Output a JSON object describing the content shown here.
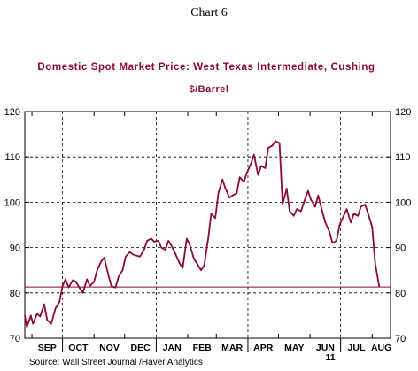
{
  "caption": "Chart 6",
  "source": "Source:  Wall Street Journal /Haver Analytics",
  "colors": {
    "series": "#8B0A2F",
    "title": "#8B0A2F",
    "grid": "#000000",
    "reference_line": "#8B0A2F"
  },
  "chart_data": {
    "type": "line",
    "title": "Domestic Spot Market Price: West Texas Intermediate, Cushing",
    "ylabel": "$/Barrel",
    "xlabel": "",
    "ylim": [
      70,
      120
    ],
    "yticks": [
      70,
      80,
      90,
      100,
      110,
      120
    ],
    "xlim": [
      "2010-08-25",
      "2011-08-19"
    ],
    "x_tick_labels": [
      "SEP",
      "OCT",
      "NOV",
      "DEC",
      "JAN",
      "FEB",
      "MAR",
      "APR",
      "MAY",
      "JUN",
      "JUL",
      "AUG"
    ],
    "year_label": "11",
    "grid": "dashed, both axes",
    "reference_line": 81.3,
    "series": [
      {
        "points": [
          [
            "2010-08-25",
            75.0
          ],
          [
            "2010-08-27",
            72.5
          ],
          [
            "2010-08-31",
            75.0
          ],
          [
            "2010-09-02",
            73.2
          ],
          [
            "2010-09-06",
            75.4
          ],
          [
            "2010-09-09",
            74.8
          ],
          [
            "2010-09-13",
            77.5
          ],
          [
            "2010-09-16",
            74.0
          ],
          [
            "2010-09-20",
            73.2
          ],
          [
            "2010-09-24",
            76.5
          ],
          [
            "2010-09-28",
            78.0
          ],
          [
            "2010-10-01",
            81.5
          ],
          [
            "2010-10-04",
            83.0
          ],
          [
            "2010-10-07",
            81.2
          ],
          [
            "2010-10-11",
            82.8
          ],
          [
            "2010-10-14",
            82.5
          ],
          [
            "2010-10-18",
            81.0
          ],
          [
            "2010-10-21",
            80.0
          ],
          [
            "2010-10-25",
            83.0
          ],
          [
            "2010-10-28",
            81.5
          ],
          [
            "2010-11-01",
            82.5
          ],
          [
            "2010-11-04",
            85.0
          ],
          [
            "2010-11-08",
            87.0
          ],
          [
            "2010-11-11",
            87.8
          ],
          [
            "2010-11-15",
            84.0
          ],
          [
            "2010-11-18",
            81.5
          ],
          [
            "2010-11-22",
            81.2
          ],
          [
            "2010-11-25",
            83.5
          ],
          [
            "2010-11-29",
            85.0
          ],
          [
            "2010-12-02",
            88.0
          ],
          [
            "2010-12-06",
            89.0
          ],
          [
            "2010-12-09",
            88.5
          ],
          [
            "2010-12-13",
            88.2
          ],
          [
            "2010-12-16",
            88.0
          ],
          [
            "2010-12-20",
            89.5
          ],
          [
            "2010-12-23",
            91.5
          ],
          [
            "2010-12-27",
            92.0
          ],
          [
            "2010-12-30",
            91.3
          ],
          [
            "2011-01-03",
            91.5
          ],
          [
            "2011-01-06",
            90.0
          ],
          [
            "2011-01-10",
            89.5
          ],
          [
            "2011-01-13",
            91.5
          ],
          [
            "2011-01-17",
            90.0
          ],
          [
            "2011-01-20",
            88.5
          ],
          [
            "2011-01-24",
            86.5
          ],
          [
            "2011-01-27",
            85.5
          ],
          [
            "2011-01-31",
            92.0
          ],
          [
            "2011-02-03",
            90.5
          ],
          [
            "2011-02-07",
            87.5
          ],
          [
            "2011-02-10",
            86.5
          ],
          [
            "2011-02-14",
            85.0
          ],
          [
            "2011-02-17",
            86.0
          ],
          [
            "2011-02-21",
            92.0
          ],
          [
            "2011-02-24",
            97.5
          ],
          [
            "2011-02-28",
            96.5
          ],
          [
            "2011-03-03",
            102.0
          ],
          [
            "2011-03-07",
            105.0
          ],
          [
            "2011-03-10",
            103.0
          ],
          [
            "2011-03-14",
            101.0
          ],
          [
            "2011-03-17",
            101.5
          ],
          [
            "2011-03-21",
            102.0
          ],
          [
            "2011-03-24",
            105.5
          ],
          [
            "2011-03-28",
            104.5
          ],
          [
            "2011-03-31",
            106.5
          ],
          [
            "2011-04-04",
            108.5
          ],
          [
            "2011-04-07",
            110.5
          ],
          [
            "2011-04-11",
            106.0
          ],
          [
            "2011-04-14",
            108.0
          ],
          [
            "2011-04-18",
            107.5
          ],
          [
            "2011-04-21",
            112.0
          ],
          [
            "2011-04-25",
            112.5
          ],
          [
            "2011-04-28",
            113.5
          ],
          [
            "2011-05-02",
            113.0
          ],
          [
            "2011-05-05",
            99.5
          ],
          [
            "2011-05-09",
            103.0
          ],
          [
            "2011-05-12",
            98.0
          ],
          [
            "2011-05-16",
            97.0
          ],
          [
            "2011-05-19",
            98.5
          ],
          [
            "2011-05-23",
            98.0
          ],
          [
            "2011-05-26",
            100.0
          ],
          [
            "2011-05-30",
            102.5
          ],
          [
            "2011-06-02",
            100.5
          ],
          [
            "2011-06-06",
            99.0
          ],
          [
            "2011-06-09",
            101.5
          ],
          [
            "2011-06-13",
            98.0
          ],
          [
            "2011-06-16",
            95.5
          ],
          [
            "2011-06-20",
            93.5
          ],
          [
            "2011-06-23",
            91.0
          ],
          [
            "2011-06-27",
            91.5
          ],
          [
            "2011-06-30",
            95.0
          ],
          [
            "2011-07-04",
            97.0
          ],
          [
            "2011-07-07",
            98.5
          ],
          [
            "2011-07-11",
            95.5
          ],
          [
            "2011-07-14",
            97.5
          ],
          [
            "2011-07-18",
            97.0
          ],
          [
            "2011-07-21",
            99.0
          ],
          [
            "2011-07-25",
            99.5
          ],
          [
            "2011-07-28",
            97.5
          ],
          [
            "2011-08-01",
            94.5
          ],
          [
            "2011-08-04",
            86.5
          ],
          [
            "2011-08-08",
            81.3
          ]
        ]
      }
    ]
  }
}
